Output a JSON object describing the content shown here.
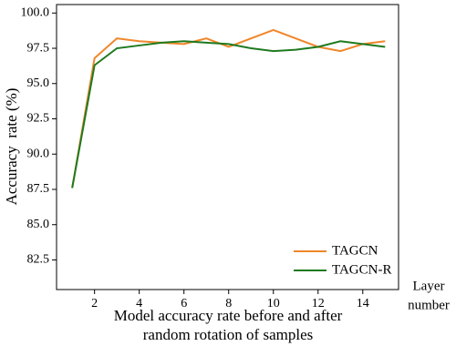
{
  "chart_data": {
    "type": "line",
    "ylabel": "Accuracy  rate (%)",
    "xlabel": [
      "Model accuracy rate before and after",
      "random rotation of samples"
    ],
    "x_unit": [
      "Layer",
      "number"
    ],
    "x": [
      1,
      2,
      3,
      4,
      5,
      6,
      7,
      8,
      9,
      10,
      11,
      12,
      13,
      14,
      15
    ],
    "series": [
      {
        "name": "TAGCN",
        "color": "#f0862a",
        "values": [
          87.6,
          96.8,
          98.2,
          98.0,
          97.9,
          97.8,
          98.2,
          97.6,
          98.2,
          98.8,
          98.2,
          97.6,
          97.3,
          97.8,
          98.0
        ]
      },
      {
        "name": "TAGCN-R",
        "color": "#1f7a1f",
        "values": [
          87.6,
          96.3,
          97.5,
          97.7,
          97.9,
          98.0,
          97.9,
          97.8,
          97.5,
          97.3,
          97.4,
          97.6,
          98.0,
          97.8,
          97.6
        ]
      }
    ],
    "xlim": [
      0.3,
      15.6
    ],
    "xticks": [
      2,
      4,
      6,
      8,
      10,
      12,
      14
    ],
    "ylim": [
      80.4,
      100.6
    ],
    "yticks": [
      {
        "value": 100,
        "label": "100.0"
      },
      97.5,
      {
        "value": 95,
        "label": "95.0"
      },
      92.5,
      {
        "value": 90,
        "label": "90.0"
      },
      87.5,
      {
        "value": 85,
        "label": "85.0"
      },
      82.5
    ],
    "legend": "lower right",
    "grid": false
  }
}
